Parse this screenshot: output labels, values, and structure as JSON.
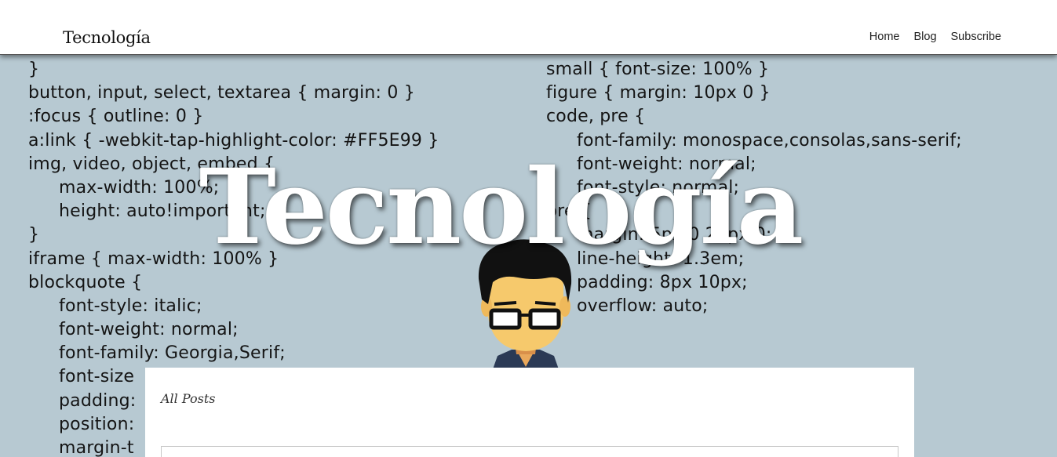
{
  "header": {
    "site_title": "Tecnología",
    "nav": [
      {
        "label": "Home"
      },
      {
        "label": "Blog"
      },
      {
        "label": "Subscribe"
      }
    ]
  },
  "hero": {
    "title": "Tecnología",
    "code_left": [
      {
        "text": "}",
        "indent": false
      },
      {
        "text": "button, input, select, textarea { margin: 0 }",
        "indent": false
      },
      {
        "text": ":focus { outline: 0 }",
        "indent": false
      },
      {
        "text": "a:link { -webkit-tap-highlight-color: #FF5E99 }",
        "indent": false
      },
      {
        "text": "img, video, object, embed {",
        "indent": false
      },
      {
        "text": "max-width: 100%;",
        "indent": true
      },
      {
        "text": "height: auto!important;",
        "indent": true
      },
      {
        "text": "}",
        "indent": false
      },
      {
        "text": "iframe { max-width: 100% }",
        "indent": false
      },
      {
        "text": "blockquote {",
        "indent": false
      },
      {
        "text": "font-style: italic;",
        "indent": true
      },
      {
        "text": "font-weight: normal;",
        "indent": true
      },
      {
        "text": "font-family: Georgia,Serif;",
        "indent": true
      },
      {
        "text": "font-size",
        "indent": true
      },
      {
        "text": "padding:",
        "indent": true
      },
      {
        "text": "position:",
        "indent": true
      },
      {
        "text": "margin-t",
        "indent": true
      }
    ],
    "code_right": [
      {
        "text": "small { font-size: 100% }",
        "indent": false
      },
      {
        "text": "figure { margin: 10px 0 }",
        "indent": false
      },
      {
        "text": "code, pre {",
        "indent": false
      },
      {
        "text": "font-family: monospace,consolas,sans-serif;",
        "indent": true
      },
      {
        "text": "font-weight: normal;",
        "indent": true
      },
      {
        "text": "font-style: normal;",
        "indent": true
      },
      {
        "text": "pre {",
        "indent": false
      },
      {
        "text": "margin: 5px 0 20px 0;",
        "indent": true
      },
      {
        "text": "line-height: 1.3em;",
        "indent": true
      },
      {
        "text": "padding: 8px 10px;",
        "indent": true
      },
      {
        "text": "overflow: auto;",
        "indent": true
      }
    ]
  },
  "posts": {
    "label": "All Posts"
  },
  "colors": {
    "hero_background": "#b7c9d2",
    "header_background": "#ffffff",
    "title_color": "#ffffff"
  }
}
